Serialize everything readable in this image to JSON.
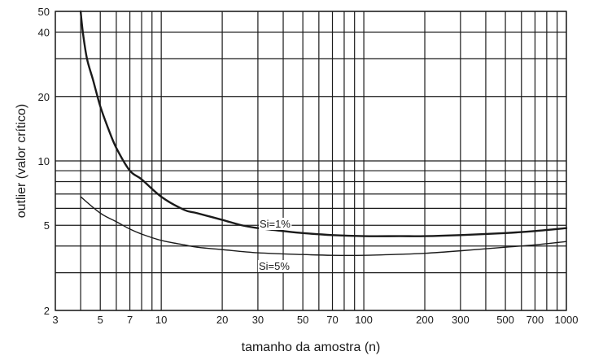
{
  "chart_data": {
    "type": "line",
    "title": "",
    "xlabel": "tamanho da amostra (n)",
    "ylabel": "outlier (valor crítico)",
    "xscale": "log",
    "yscale": "log",
    "xlim": [
      3,
      1000
    ],
    "ylim": [
      2,
      50
    ],
    "grid": true,
    "legend": "none",
    "x_ticks": [
      3,
      5,
      7,
      10,
      20,
      30,
      50,
      70,
      100,
      200,
      300,
      500,
      700,
      1000
    ],
    "x_tick_labels": [
      "3",
      "5",
      "7",
      "10",
      "20",
      "30",
      "50",
      "70",
      "100",
      "200",
      "300",
      "500",
      "700",
      "1000"
    ],
    "x_grid": [
      3,
      4,
      5,
      6,
      7,
      8,
      9,
      10,
      20,
      30,
      40,
      50,
      60,
      70,
      80,
      90,
      100,
      200,
      300,
      400,
      500,
      600,
      700,
      800,
      900,
      1000
    ],
    "y_ticks": [
      2,
      5,
      10,
      20,
      40,
      50
    ],
    "y_tick_labels": [
      "2",
      "5",
      "10",
      "20",
      "40",
      "50"
    ],
    "y_grid": [
      2,
      3,
      4,
      5,
      6,
      7,
      8,
      9,
      10,
      20,
      30,
      40,
      50
    ],
    "series": [
      {
        "name": "Si=1%",
        "x": [
          4,
          4.1,
          4.3,
          4.6,
          5,
          5.5,
          6,
          7,
          8,
          10,
          13,
          15,
          20,
          25,
          30,
          40,
          50,
          70,
          100,
          150,
          200,
          300,
          500,
          700,
          1000
        ],
        "y": [
          50,
          40,
          30,
          24,
          18,
          14,
          11.5,
          9.0,
          8.2,
          6.8,
          5.9,
          5.7,
          5.3,
          5.0,
          4.85,
          4.7,
          4.6,
          4.5,
          4.45,
          4.45,
          4.45,
          4.5,
          4.6,
          4.7,
          4.85
        ]
      },
      {
        "name": "Si=5%",
        "x": [
          4,
          5,
          6,
          7,
          8,
          10,
          13,
          15,
          20,
          30,
          50,
          70,
          100,
          150,
          200,
          300,
          500,
          700,
          1000
        ],
        "y": [
          6.8,
          5.7,
          5.2,
          4.8,
          4.55,
          4.25,
          4.05,
          3.95,
          3.85,
          3.72,
          3.65,
          3.62,
          3.62,
          3.66,
          3.7,
          3.8,
          3.95,
          4.05,
          4.2
        ]
      }
    ]
  }
}
